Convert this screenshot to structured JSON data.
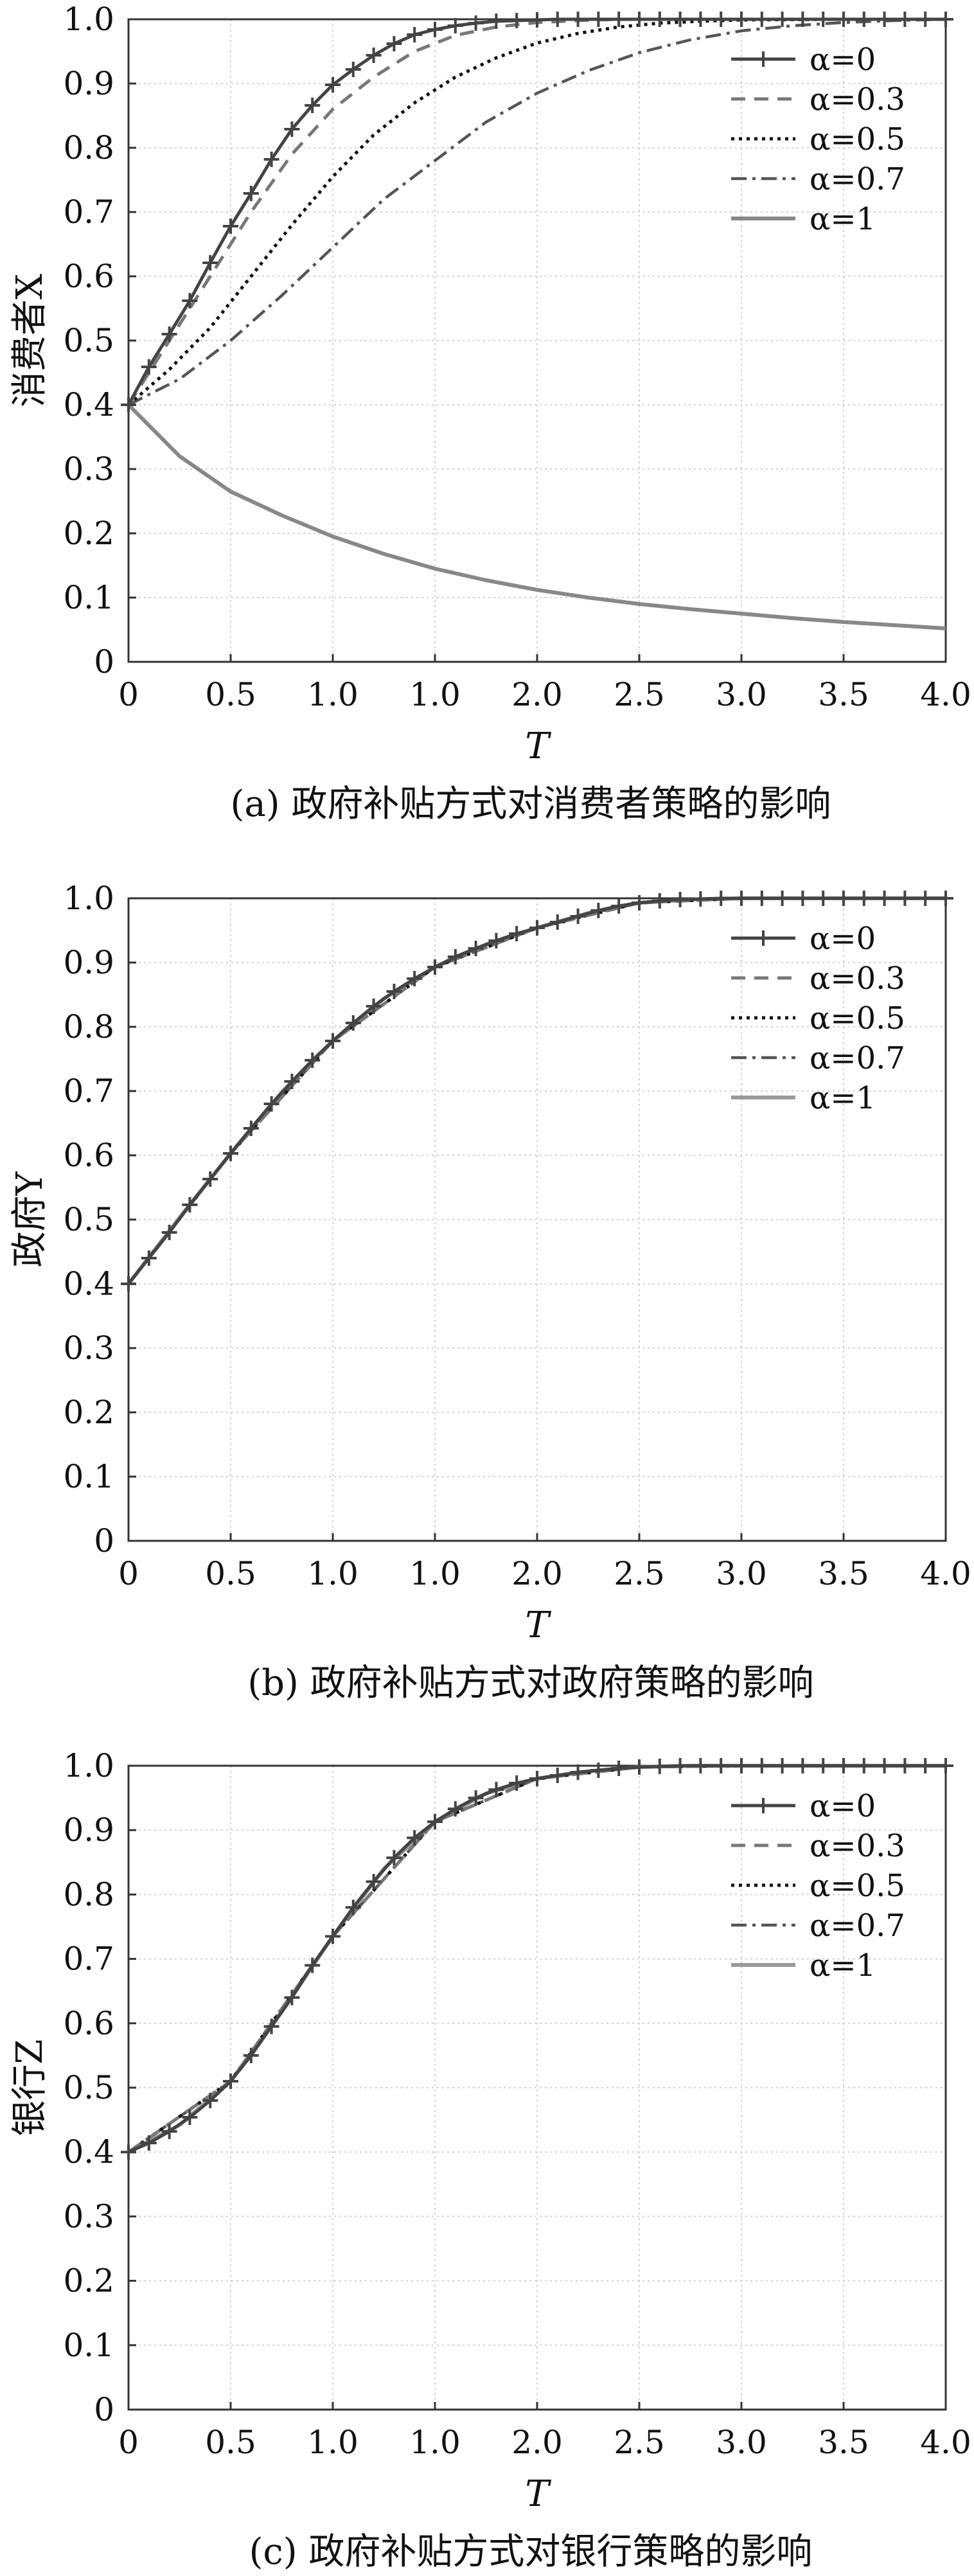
{
  "chart_data": [
    {
      "type": "line",
      "caption": "(a) 政府补贴方式对消费者策略的影响",
      "xlabel": "T",
      "ylabel": "消费者X",
      "xlim": [
        0,
        4
      ],
      "ylim": [
        0,
        1
      ],
      "x_tick_labels": [
        "0",
        "0.5",
        "1.0",
        "1.0",
        "2.0",
        "2.5",
        "3.0",
        "3.5",
        "4.0"
      ],
      "y_tick_labels": [
        "0",
        "0.1",
        "0.2",
        "0.3",
        "0.4",
        "0.5",
        "0.6",
        "0.7",
        "0.8",
        "0.9",
        "1.0"
      ],
      "grid": true,
      "legend_position": "top-right",
      "series": [
        {
          "name": "α=0",
          "style": "solid-plus",
          "color": "#444444",
          "x": [
            0,
            0.1,
            0.2,
            0.3,
            0.4,
            0.5,
            0.6,
            0.7,
            0.8,
            0.9,
            1.0,
            1.1,
            1.2,
            1.3,
            1.4,
            1.5,
            1.6,
            1.7,
            1.8,
            1.9,
            2.0,
            2.1,
            2.2,
            2.3,
            2.4,
            2.5,
            2.6,
            2.7,
            2.8,
            2.9,
            3.0,
            3.1,
            3.2,
            3.3,
            3.4,
            3.5,
            3.6,
            3.7,
            3.8,
            3.9,
            4.0
          ],
          "y": [
            0.4,
            0.459,
            0.51,
            0.562,
            0.621,
            0.678,
            0.729,
            0.782,
            0.829,
            0.866,
            0.898,
            0.922,
            0.944,
            0.962,
            0.976,
            0.984,
            0.99,
            0.994,
            0.997,
            0.998,
            0.999,
            1.0,
            1.0,
            1.0,
            1.0,
            1.0,
            1.0,
            1.0,
            1.0,
            1.0,
            1.0,
            1.0,
            1.0,
            1.0,
            1.0,
            1.0,
            1.0,
            1.0,
            1.0,
            1.0,
            1.0
          ]
        },
        {
          "name": "α=0.3",
          "style": "dashed",
          "color": "#777777",
          "x": [
            0,
            0.2,
            0.4,
            0.6,
            0.8,
            1.0,
            1.2,
            1.4,
            1.6,
            1.8,
            2.0,
            2.2,
            2.4,
            2.6,
            3.0,
            3.5,
            4.0
          ],
          "y": [
            0.4,
            0.5,
            0.6,
            0.7,
            0.79,
            0.86,
            0.91,
            0.95,
            0.975,
            0.988,
            0.995,
            0.998,
            1.0,
            1.0,
            1.0,
            1.0,
            1.0
          ]
        },
        {
          "name": "α=0.5",
          "style": "dotted",
          "color": "#111111",
          "x": [
            0,
            0.2,
            0.4,
            0.6,
            0.8,
            1.0,
            1.2,
            1.4,
            1.6,
            1.8,
            2.0,
            2.2,
            2.4,
            2.6,
            2.8,
            3.0,
            3.5,
            4.0
          ],
          "y": [
            0.4,
            0.455,
            0.52,
            0.6,
            0.68,
            0.755,
            0.82,
            0.87,
            0.91,
            0.94,
            0.963,
            0.978,
            0.988,
            0.994,
            0.997,
            0.999,
            1.0,
            1.0
          ]
        },
        {
          "name": "α=0.7",
          "style": "dashdot",
          "color": "#555555",
          "x": [
            0,
            0.25,
            0.5,
            0.75,
            1.0,
            1.25,
            1.5,
            1.75,
            2.0,
            2.25,
            2.5,
            2.75,
            3.0,
            3.25,
            3.5,
            3.75,
            4.0
          ],
          "y": [
            0.4,
            0.44,
            0.5,
            0.57,
            0.645,
            0.72,
            0.78,
            0.84,
            0.885,
            0.92,
            0.948,
            0.968,
            0.982,
            0.99,
            0.995,
            0.998,
            1.0
          ]
        },
        {
          "name": "α=1",
          "style": "solid",
          "color": "#888888",
          "x": [
            0,
            0.25,
            0.5,
            0.75,
            1.0,
            1.25,
            1.5,
            1.75,
            2.0,
            2.25,
            2.5,
            2.75,
            3.0,
            3.25,
            3.5,
            3.75,
            4.0
          ],
          "y": [
            0.4,
            0.32,
            0.265,
            0.228,
            0.195,
            0.168,
            0.145,
            0.127,
            0.112,
            0.1,
            0.09,
            0.082,
            0.075,
            0.068,
            0.062,
            0.057,
            0.052
          ]
        }
      ]
    },
    {
      "type": "line",
      "caption": "(b) 政府补贴方式对政府策略的影响",
      "xlabel": "T",
      "ylabel": "政府Y",
      "xlim": [
        0,
        4
      ],
      "ylim": [
        0,
        1
      ],
      "x_tick_labels": [
        "0",
        "0.5",
        "1.0",
        "1.0",
        "2.0",
        "2.5",
        "3.0",
        "3.5",
        "4.0"
      ],
      "y_tick_labels": [
        "0",
        "0.1",
        "0.2",
        "0.3",
        "0.4",
        "0.5",
        "0.6",
        "0.7",
        "0.8",
        "0.9",
        "1.0"
      ],
      "grid": true,
      "legend_position": "top-right",
      "series": [
        {
          "name": "α=0",
          "style": "solid-plus",
          "color": "#444444",
          "x": [
            0,
            0.1,
            0.2,
            0.3,
            0.4,
            0.5,
            0.6,
            0.7,
            0.8,
            0.9,
            1.0,
            1.1,
            1.2,
            1.3,
            1.4,
            1.5,
            1.6,
            1.7,
            1.8,
            1.9,
            2.0,
            2.1,
            2.2,
            2.3,
            2.4,
            2.5,
            2.6,
            2.7,
            2.8,
            2.9,
            3.0,
            3.1,
            3.2,
            3.3,
            3.4,
            3.5,
            3.6,
            3.7,
            3.8,
            3.9,
            4.0
          ],
          "y": [
            0.4,
            0.44,
            0.48,
            0.523,
            0.563,
            0.603,
            0.642,
            0.68,
            0.715,
            0.748,
            0.778,
            0.806,
            0.832,
            0.855,
            0.875,
            0.893,
            0.909,
            0.922,
            0.934,
            0.945,
            0.954,
            0.963,
            0.972,
            0.981,
            0.988,
            0.993,
            0.996,
            0.998,
            0.999,
            1.0,
            1.0,
            1.0,
            1.0,
            1.0,
            1.0,
            1.0,
            1.0,
            1.0,
            1.0,
            1.0,
            1.0
          ]
        },
        {
          "name": "α=0.3",
          "style": "dashed",
          "color": "#777777",
          "x": [
            0,
            0.5,
            1.0,
            1.5,
            2.0,
            2.5,
            3.0,
            3.5,
            4.0
          ],
          "y": [
            0.4,
            0.603,
            0.778,
            0.893,
            0.954,
            0.993,
            1.0,
            1.0,
            1.0
          ]
        },
        {
          "name": "α=0.5",
          "style": "dotted",
          "color": "#111111",
          "x": [
            0,
            0.5,
            1.0,
            1.5,
            2.0,
            2.5,
            3.0,
            3.5,
            4.0
          ],
          "y": [
            0.4,
            0.603,
            0.778,
            0.893,
            0.954,
            0.993,
            1.0,
            1.0,
            1.0
          ]
        },
        {
          "name": "α=0.7",
          "style": "dashdot",
          "color": "#555555",
          "x": [
            0,
            0.5,
            1.0,
            1.5,
            2.0,
            2.5,
            3.0,
            3.5,
            4.0
          ],
          "y": [
            0.4,
            0.603,
            0.778,
            0.893,
            0.954,
            0.993,
            1.0,
            1.0,
            1.0
          ]
        },
        {
          "name": "α=1",
          "style": "solid",
          "color": "#9a9a9a",
          "x": [
            0,
            0.25,
            0.5,
            0.75,
            1.0,
            1.25,
            1.5,
            1.75,
            2.0,
            2.25,
            2.5,
            2.75,
            3.0,
            3.25,
            3.5,
            3.75,
            4.0
          ],
          "y": [
            0.4,
            0.503,
            0.603,
            0.698,
            0.778,
            0.844,
            0.893,
            0.928,
            0.954,
            0.977,
            0.993,
            0.998,
            1.0,
            1.0,
            1.0,
            1.0,
            1.0
          ]
        }
      ]
    },
    {
      "type": "line",
      "caption": "(c) 政府补贴方式对银行策略的影响",
      "xlabel": "T",
      "ylabel": "银行Z",
      "xlim": [
        0,
        4
      ],
      "ylim": [
        0,
        1
      ],
      "x_tick_labels": [
        "0",
        "0.5",
        "1.0",
        "1.0",
        "2.0",
        "2.5",
        "3.0",
        "3.5",
        "4.0"
      ],
      "y_tick_labels": [
        "0",
        "0.1",
        "0.2",
        "0.3",
        "0.4",
        "0.5",
        "0.6",
        "0.7",
        "0.8",
        "0.9",
        "1.0"
      ],
      "grid": true,
      "legend_position": "top-right",
      "series": [
        {
          "name": "α=0",
          "style": "solid-plus",
          "color": "#444444",
          "x": [
            0,
            0.1,
            0.2,
            0.3,
            0.4,
            0.5,
            0.6,
            0.7,
            0.8,
            0.9,
            1.0,
            1.1,
            1.2,
            1.3,
            1.4,
            1.5,
            1.6,
            1.7,
            1.8,
            1.9,
            2.0,
            2.1,
            2.2,
            2.3,
            2.4,
            2.5,
            2.6,
            2.7,
            2.8,
            2.9,
            3.0,
            3.1,
            3.2,
            3.3,
            3.4,
            3.5,
            3.6,
            3.7,
            3.8,
            3.9,
            4.0
          ],
          "y": [
            0.4,
            0.414,
            0.432,
            0.454,
            0.48,
            0.51,
            0.55,
            0.595,
            0.64,
            0.69,
            0.735,
            0.78,
            0.82,
            0.857,
            0.888,
            0.913,
            0.933,
            0.95,
            0.963,
            0.973,
            0.98,
            0.985,
            0.99,
            0.993,
            0.996,
            0.998,
            0.999,
            1.0,
            1.0,
            1.0,
            1.0,
            1.0,
            1.0,
            1.0,
            1.0,
            1.0,
            1.0,
            1.0,
            1.0,
            1.0,
            1.0
          ]
        },
        {
          "name": "α=0.3",
          "style": "dashed",
          "color": "#777777",
          "x": [
            0,
            0.5,
            1.0,
            1.5,
            2.0,
            2.5,
            3.0,
            3.5,
            4.0
          ],
          "y": [
            0.4,
            0.51,
            0.735,
            0.913,
            0.98,
            0.998,
            1.0,
            1.0,
            1.0
          ]
        },
        {
          "name": "α=0.5",
          "style": "dotted",
          "color": "#111111",
          "x": [
            0,
            0.5,
            1.0,
            1.5,
            2.0,
            2.5,
            3.0,
            3.5,
            4.0
          ],
          "y": [
            0.4,
            0.51,
            0.735,
            0.913,
            0.98,
            0.998,
            1.0,
            1.0,
            1.0
          ]
        },
        {
          "name": "α=0.7",
          "style": "dashdot",
          "color": "#555555",
          "x": [
            0,
            0.5,
            1.0,
            1.5,
            2.0,
            2.5,
            3.0,
            3.5,
            4.0
          ],
          "y": [
            0.4,
            0.51,
            0.735,
            0.913,
            0.98,
            0.998,
            1.0,
            1.0,
            1.0
          ]
        },
        {
          "name": "α=1",
          "style": "solid",
          "color": "#9a9a9a",
          "x": [
            0,
            0.25,
            0.5,
            0.75,
            1.0,
            1.25,
            1.5,
            1.75,
            2.0,
            2.25,
            2.5,
            2.75,
            3.0,
            3.25,
            3.5,
            3.75,
            4.0
          ],
          "y": [
            0.4,
            0.442,
            0.51,
            0.618,
            0.735,
            0.84,
            0.913,
            0.957,
            0.98,
            0.991,
            0.998,
            1.0,
            1.0,
            1.0,
            1.0,
            1.0,
            1.0
          ]
        }
      ]
    }
  ]
}
